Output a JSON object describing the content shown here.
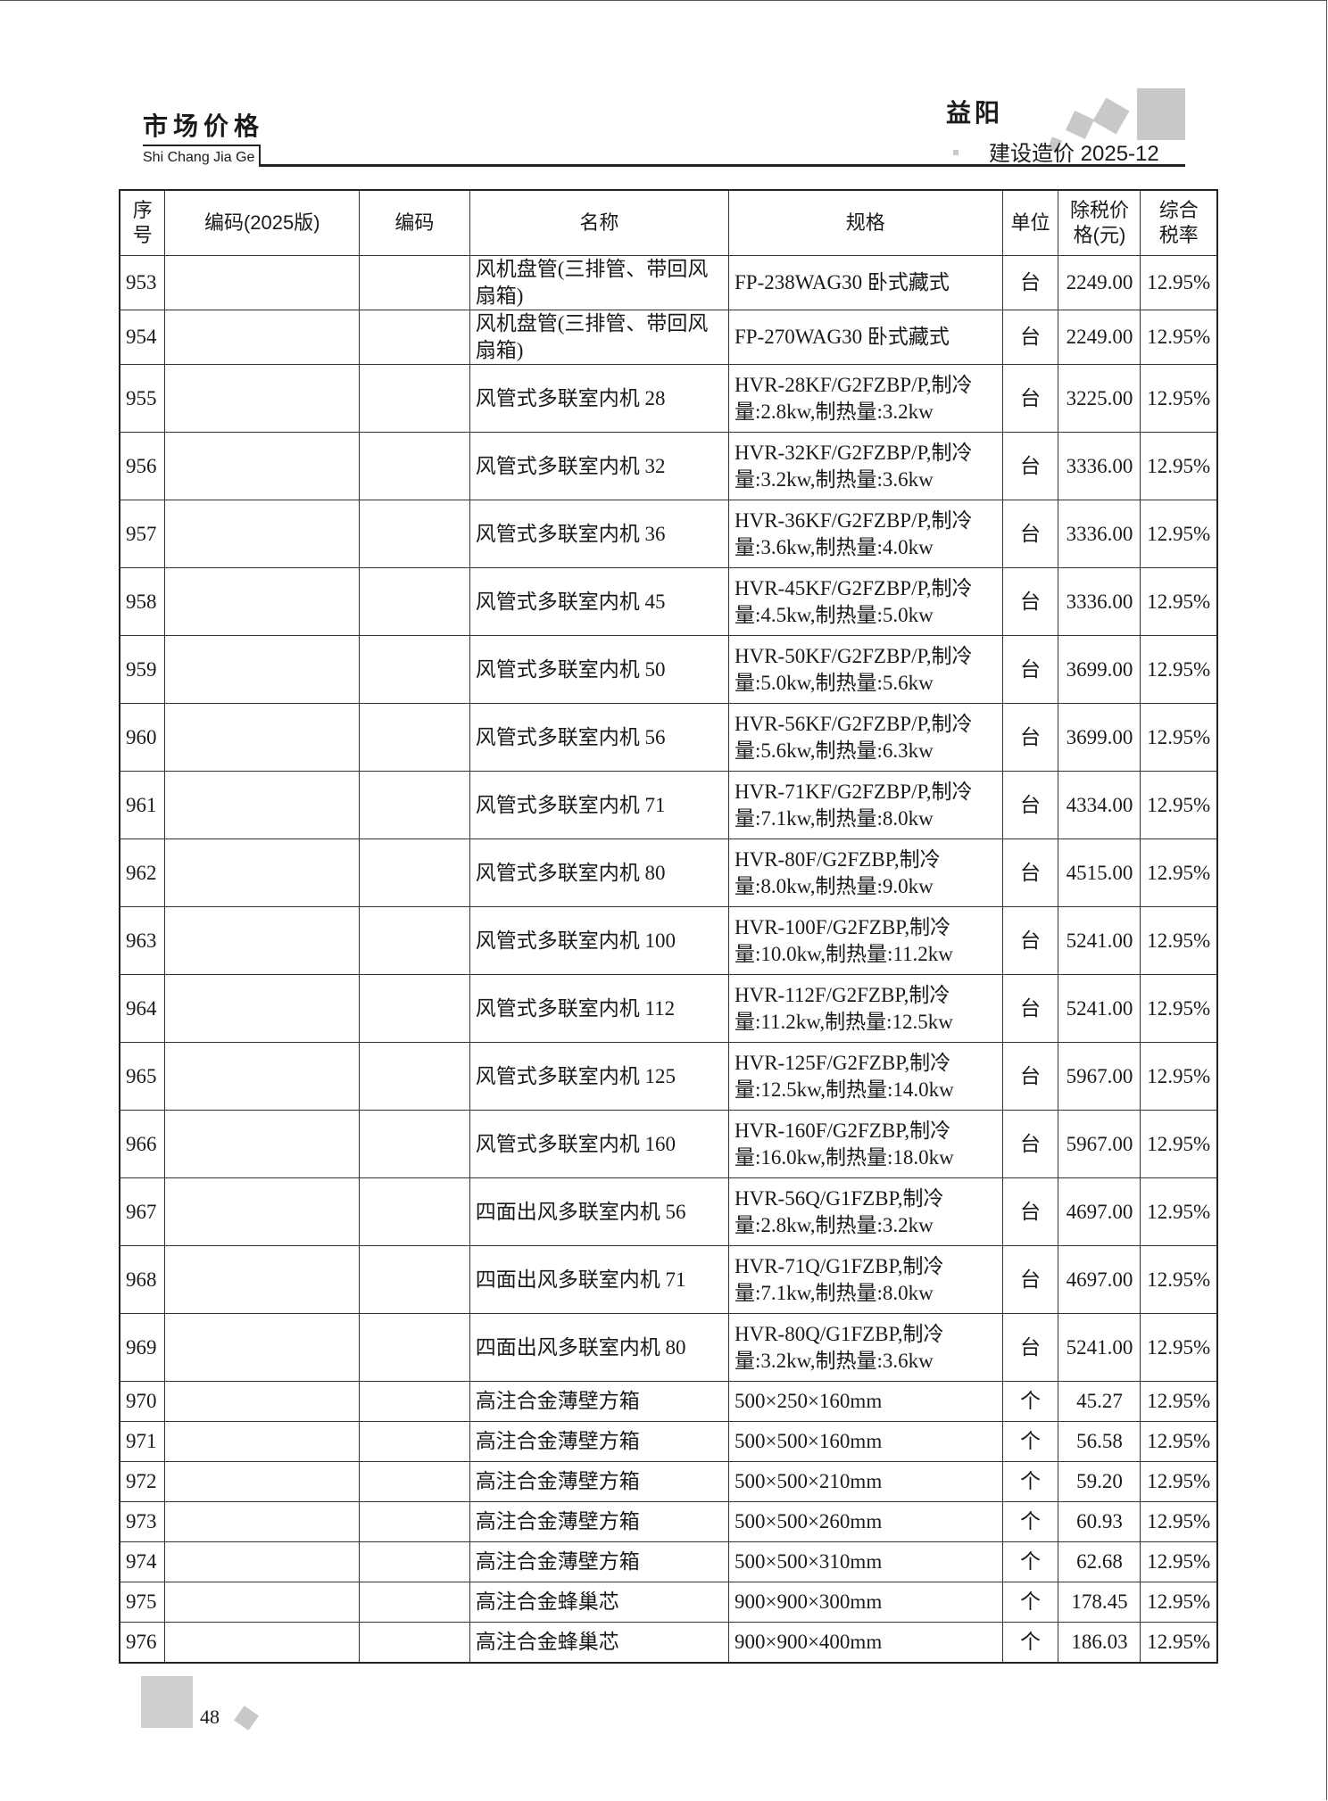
{
  "header": {
    "section_title": "市场价格",
    "section_pinyin": "Shi Chang Jia Ge",
    "city": "益阳",
    "publication": "建设造价 2025-12"
  },
  "table": {
    "columns": [
      "序号",
      "编码(2025版)",
      "编码",
      "名称",
      "规格",
      "单位",
      "除税价格(元)",
      "综合税率"
    ],
    "rows": [
      {
        "no": "953",
        "code2025": "",
        "code": "",
        "name": "风机盘管(三排管、带回风扇箱)",
        "spec": "FP-238WAG30 卧式藏式",
        "unit": "台",
        "price": "2249.00",
        "tax": "12.95%"
      },
      {
        "no": "954",
        "code2025": "",
        "code": "",
        "name": "风机盘管(三排管、带回风扇箱)",
        "spec": "FP-270WAG30 卧式藏式",
        "unit": "台",
        "price": "2249.00",
        "tax": "12.95%"
      },
      {
        "no": "955",
        "code2025": "",
        "code": "",
        "name": "风管式多联室内机 28",
        "spec": "HVR-28KF/G2FZBP/P,制冷量:2.8kw,制热量:3.2kw",
        "unit": "台",
        "price": "3225.00",
        "tax": "12.95%"
      },
      {
        "no": "956",
        "code2025": "",
        "code": "",
        "name": "风管式多联室内机 32",
        "spec": "HVR-32KF/G2FZBP/P,制冷量:3.2kw,制热量:3.6kw",
        "unit": "台",
        "price": "3336.00",
        "tax": "12.95%"
      },
      {
        "no": "957",
        "code2025": "",
        "code": "",
        "name": "风管式多联室内机 36",
        "spec": "HVR-36KF/G2FZBP/P,制冷量:3.6kw,制热量:4.0kw",
        "unit": "台",
        "price": "3336.00",
        "tax": "12.95%"
      },
      {
        "no": "958",
        "code2025": "",
        "code": "",
        "name": "风管式多联室内机 45",
        "spec": "HVR-45KF/G2FZBP/P,制冷量:4.5kw,制热量:5.0kw",
        "unit": "台",
        "price": "3336.00",
        "tax": "12.95%"
      },
      {
        "no": "959",
        "code2025": "",
        "code": "",
        "name": "风管式多联室内机 50",
        "spec": "HVR-50KF/G2FZBP/P,制冷量:5.0kw,制热量:5.6kw",
        "unit": "台",
        "price": "3699.00",
        "tax": "12.95%"
      },
      {
        "no": "960",
        "code2025": "",
        "code": "",
        "name": "风管式多联室内机 56",
        "spec": "HVR-56KF/G2FZBP/P,制冷量:5.6kw,制热量:6.3kw",
        "unit": "台",
        "price": "3699.00",
        "tax": "12.95%"
      },
      {
        "no": "961",
        "code2025": "",
        "code": "",
        "name": "风管式多联室内机 71",
        "spec": "HVR-71KF/G2FZBP/P,制冷量:7.1kw,制热量:8.0kw",
        "unit": "台",
        "price": "4334.00",
        "tax": "12.95%"
      },
      {
        "no": "962",
        "code2025": "",
        "code": "",
        "name": "风管式多联室内机 80",
        "spec": "HVR-80F/G2FZBP,制冷量:8.0kw,制热量:9.0kw",
        "unit": "台",
        "price": "4515.00",
        "tax": "12.95%"
      },
      {
        "no": "963",
        "code2025": "",
        "code": "",
        "name": "风管式多联室内机 100",
        "spec": "HVR-100F/G2FZBP,制冷量:10.0kw,制热量:11.2kw",
        "unit": "台",
        "price": "5241.00",
        "tax": "12.95%"
      },
      {
        "no": "964",
        "code2025": "",
        "code": "",
        "name": "风管式多联室内机 112",
        "spec": "HVR-112F/G2FZBP,制冷量:11.2kw,制热量:12.5kw",
        "unit": "台",
        "price": "5241.00",
        "tax": "12.95%"
      },
      {
        "no": "965",
        "code2025": "",
        "code": "",
        "name": "风管式多联室内机 125",
        "spec": "HVR-125F/G2FZBP,制冷量:12.5kw,制热量:14.0kw",
        "unit": "台",
        "price": "5967.00",
        "tax": "12.95%"
      },
      {
        "no": "966",
        "code2025": "",
        "code": "",
        "name": "风管式多联室内机 160",
        "spec": "HVR-160F/G2FZBP,制冷量:16.0kw,制热量:18.0kw",
        "unit": "台",
        "price": "5967.00",
        "tax": "12.95%"
      },
      {
        "no": "967",
        "code2025": "",
        "code": "",
        "name": "四面出风多联室内机 56",
        "spec": "HVR-56Q/G1FZBP,制冷量:2.8kw,制热量:3.2kw",
        "unit": "台",
        "price": "4697.00",
        "tax": "12.95%"
      },
      {
        "no": "968",
        "code2025": "",
        "code": "",
        "name": "四面出风多联室内机 71",
        "spec": "HVR-71Q/G1FZBP,制冷量:7.1kw,制热量:8.0kw",
        "unit": "台",
        "price": "4697.00",
        "tax": "12.95%"
      },
      {
        "no": "969",
        "code2025": "",
        "code": "",
        "name": "四面出风多联室内机 80",
        "spec": "HVR-80Q/G1FZBP,制冷量:3.2kw,制热量:3.6kw",
        "unit": "台",
        "price": "5241.00",
        "tax": "12.95%"
      },
      {
        "no": "970",
        "code2025": "",
        "code": "",
        "name": "高注合金薄壁方箱",
        "spec": "500×250×160mm",
        "unit": "个",
        "price": "45.27",
        "tax": "12.95%"
      },
      {
        "no": "971",
        "code2025": "",
        "code": "",
        "name": "高注合金薄壁方箱",
        "spec": "500×500×160mm",
        "unit": "个",
        "price": "56.58",
        "tax": "12.95%"
      },
      {
        "no": "972",
        "code2025": "",
        "code": "",
        "name": "高注合金薄壁方箱",
        "spec": "500×500×210mm",
        "unit": "个",
        "price": "59.20",
        "tax": "12.95%"
      },
      {
        "no": "973",
        "code2025": "",
        "code": "",
        "name": "高注合金薄壁方箱",
        "spec": "500×500×260mm",
        "unit": "个",
        "price": "60.93",
        "tax": "12.95%"
      },
      {
        "no": "974",
        "code2025": "",
        "code": "",
        "name": "高注合金薄壁方箱",
        "spec": "500×500×310mm",
        "unit": "个",
        "price": "62.68",
        "tax": "12.95%"
      },
      {
        "no": "975",
        "code2025": "",
        "code": "",
        "name": "高注合金蜂巢芯",
        "spec": "900×900×300mm",
        "unit": "个",
        "price": "178.45",
        "tax": "12.95%"
      },
      {
        "no": "976",
        "code2025": "",
        "code": "",
        "name": "高注合金蜂巢芯",
        "spec": "900×900×400mm",
        "unit": "个",
        "price": "186.03",
        "tax": "12.95%"
      }
    ]
  },
  "footer": {
    "page_number": "48"
  }
}
